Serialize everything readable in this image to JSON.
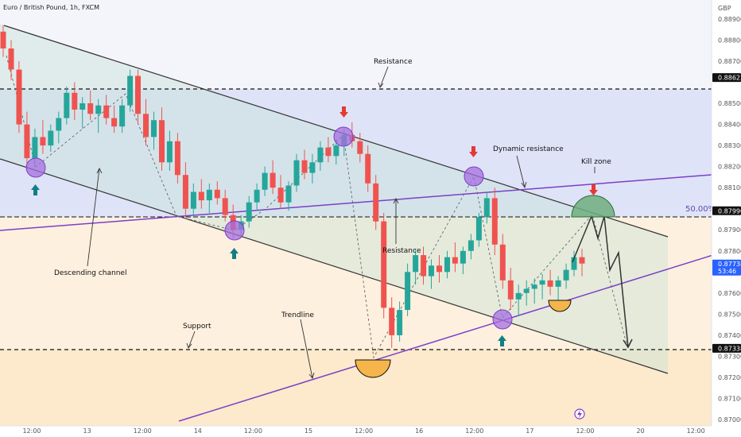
{
  "header": {
    "title": "Euro / British Pound, 1h, FXCM",
    "currency": "GBP"
  },
  "chart_data": {
    "type": "candlestick",
    "y_ticks": [
      0.889,
      0.888,
      0.887,
      0.885,
      0.884,
      0.883,
      0.882,
      0.881,
      0.879,
      0.878,
      0.876,
      0.875,
      0.874,
      0.873,
      0.872,
      0.871,
      0.87
    ],
    "ylim": [
      0.8697,
      0.8899
    ],
    "x_ticks": [
      "12:00",
      "13",
      "12:00",
      "14",
      "12:00",
      "15",
      "12:00",
      "16",
      "12:00",
      "17",
      "12:00",
      "20",
      "12:00"
    ],
    "price_labels": [
      {
        "value": "0.88622",
        "price": 0.88622,
        "color": "#111111"
      },
      {
        "value": "0.87990",
        "price": 0.8799,
        "color": "#111111"
      },
      {
        "value": "0.87738",
        "price": 0.87738,
        "color": "#2962ff",
        "countdown": "53:46"
      },
      {
        "value": "0.87338",
        "price": 0.87338,
        "color": "#111111"
      }
    ],
    "levels": [
      {
        "name": "Resistance",
        "price": 0.88622
      },
      {
        "name": "50.00%",
        "price": 0.8799
      },
      {
        "name": "Support",
        "price": 0.87338
      }
    ],
    "fib_label": "50.00%",
    "annotations": [
      "Resistance",
      "Dynamic resistance",
      "Kill zone",
      "Descending channel",
      "Resistance",
      "Support",
      "Trendline"
    ],
    "candles": [
      [
        0.8884,
        0.8887,
        0.8872,
        0.8876
      ],
      [
        0.8876,
        0.888,
        0.8861,
        0.8866
      ],
      [
        0.8866,
        0.887,
        0.8836,
        0.884
      ],
      [
        0.884,
        0.8846,
        0.8818,
        0.8824
      ],
      [
        0.8824,
        0.8838,
        0.882,
        0.8834
      ],
      [
        0.8834,
        0.8842,
        0.8826,
        0.883
      ],
      [
        0.883,
        0.884,
        0.8827,
        0.8837
      ],
      [
        0.8837,
        0.8846,
        0.8831,
        0.8843
      ],
      [
        0.8843,
        0.8858,
        0.884,
        0.8855
      ],
      [
        0.8855,
        0.886,
        0.8842,
        0.8847
      ],
      [
        0.8847,
        0.8853,
        0.8838,
        0.885
      ],
      [
        0.885,
        0.8856,
        0.8842,
        0.8845
      ],
      [
        0.8845,
        0.8852,
        0.8836,
        0.8849
      ],
      [
        0.8849,
        0.8854,
        0.884,
        0.8843
      ],
      [
        0.8843,
        0.8849,
        0.8836,
        0.8839
      ],
      [
        0.8839,
        0.8852,
        0.8836,
        0.8849
      ],
      [
        0.8849,
        0.8866,
        0.8846,
        0.8863
      ],
      [
        0.8863,
        0.8866,
        0.884,
        0.8845
      ],
      [
        0.8845,
        0.8852,
        0.883,
        0.8834
      ],
      [
        0.8834,
        0.8846,
        0.8828,
        0.8842
      ],
      [
        0.8842,
        0.8848,
        0.8818,
        0.8822
      ],
      [
        0.8822,
        0.8837,
        0.8818,
        0.8832
      ],
      [
        0.8832,
        0.8836,
        0.8812,
        0.8816
      ],
      [
        0.8816,
        0.8822,
        0.8796,
        0.88
      ],
      [
        0.88,
        0.8812,
        0.8797,
        0.8808
      ],
      [
        0.8808,
        0.8814,
        0.88,
        0.8804
      ],
      [
        0.8804,
        0.8812,
        0.8798,
        0.8809
      ],
      [
        0.8809,
        0.8813,
        0.8802,
        0.8805
      ],
      [
        0.8805,
        0.8809,
        0.8794,
        0.8797
      ],
      [
        0.8797,
        0.8802,
        0.8786,
        0.879
      ],
      [
        0.879,
        0.8797,
        0.8787,
        0.8794
      ],
      [
        0.8794,
        0.8806,
        0.8791,
        0.8803
      ],
      [
        0.8803,
        0.8812,
        0.8799,
        0.8809
      ],
      [
        0.8809,
        0.882,
        0.8806,
        0.8817
      ],
      [
        0.8817,
        0.8823,
        0.8807,
        0.881
      ],
      [
        0.881,
        0.8816,
        0.88,
        0.8803
      ],
      [
        0.8803,
        0.8813,
        0.8799,
        0.8811
      ],
      [
        0.8811,
        0.8826,
        0.8808,
        0.8823
      ],
      [
        0.8823,
        0.8828,
        0.8814,
        0.8817
      ],
      [
        0.8817,
        0.8826,
        0.8812,
        0.8822
      ],
      [
        0.8822,
        0.8832,
        0.8818,
        0.8829
      ],
      [
        0.8829,
        0.8834,
        0.8822,
        0.8825
      ],
      [
        0.8825,
        0.8833,
        0.8821,
        0.883
      ],
      [
        0.883,
        0.8838,
        0.8825,
        0.8835
      ],
      [
        0.8835,
        0.8841,
        0.8829,
        0.8832
      ],
      [
        0.8832,
        0.8836,
        0.8822,
        0.8826
      ],
      [
        0.8826,
        0.883,
        0.8808,
        0.8812
      ],
      [
        0.8812,
        0.8816,
        0.879,
        0.8794
      ],
      [
        0.8794,
        0.8798,
        0.8748,
        0.8753
      ],
      [
        0.8753,
        0.8758,
        0.8734,
        0.874
      ],
      [
        0.874,
        0.8756,
        0.8737,
        0.8752
      ],
      [
        0.8752,
        0.8774,
        0.8749,
        0.877
      ],
      [
        0.877,
        0.8781,
        0.8764,
        0.8778
      ],
      [
        0.8778,
        0.8782,
        0.8764,
        0.8768
      ],
      [
        0.8768,
        0.8776,
        0.8762,
        0.8773
      ],
      [
        0.8773,
        0.8778,
        0.8765,
        0.877
      ],
      [
        0.877,
        0.878,
        0.8767,
        0.8777
      ],
      [
        0.8777,
        0.8784,
        0.877,
        0.8774
      ],
      [
        0.8774,
        0.8782,
        0.8769,
        0.878
      ],
      [
        0.878,
        0.8788,
        0.8776,
        0.8785
      ],
      [
        0.8785,
        0.8798,
        0.8782,
        0.8796
      ],
      [
        0.8796,
        0.8808,
        0.8793,
        0.8805
      ],
      [
        0.8805,
        0.881,
        0.8778,
        0.8783
      ],
      [
        0.8783,
        0.8788,
        0.8762,
        0.8766
      ],
      [
        0.8766,
        0.8772,
        0.8752,
        0.8757
      ],
      [
        0.8757,
        0.8764,
        0.8749,
        0.876
      ],
      [
        0.876,
        0.8766,
        0.8754,
        0.8762
      ],
      [
        0.8762,
        0.8767,
        0.8755,
        0.8764
      ],
      [
        0.8764,
        0.8769,
        0.8757,
        0.8766
      ],
      [
        0.8766,
        0.8771,
        0.8759,
        0.8763
      ],
      [
        0.8763,
        0.8768,
        0.8756,
        0.8766
      ],
      [
        0.8766,
        0.8774,
        0.8762,
        0.8771
      ],
      [
        0.8771,
        0.878,
        0.8768,
        0.8777
      ],
      [
        0.8777,
        0.8781,
        0.8768,
        0.8774
      ]
    ]
  }
}
